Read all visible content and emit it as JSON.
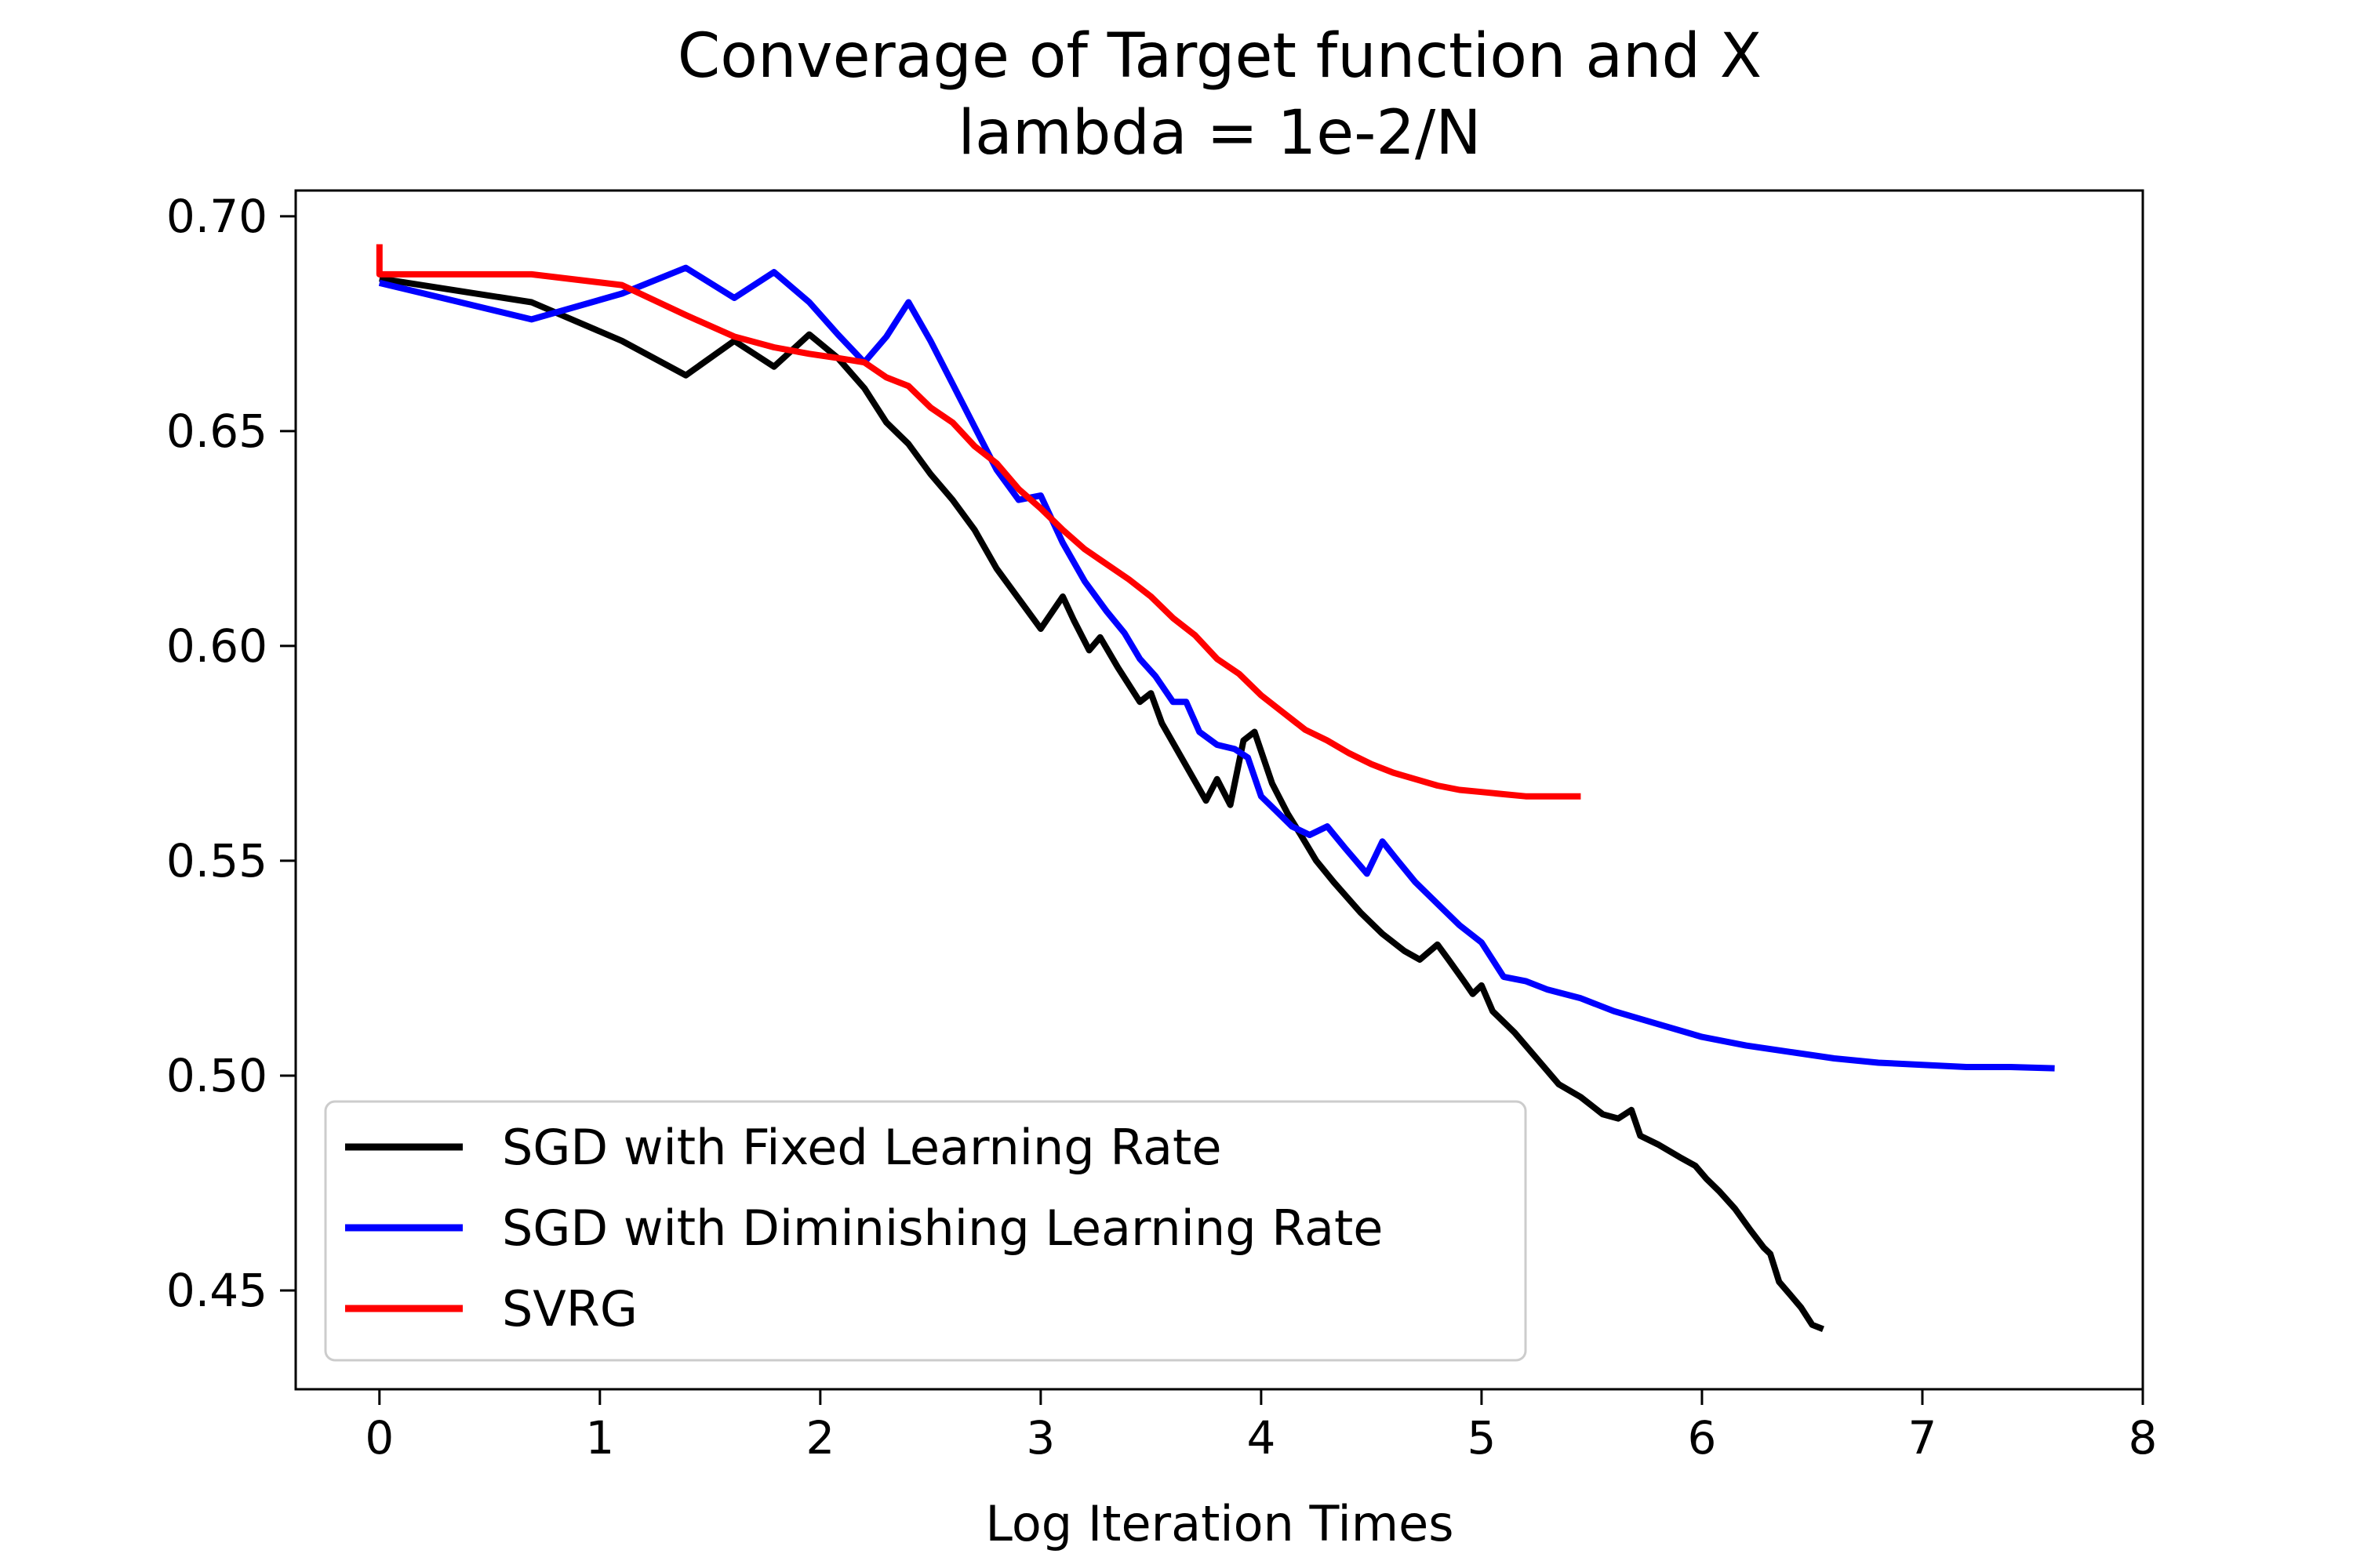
{
  "chart_data": {
    "type": "line",
    "title": "Converage of Target function and X",
    "subtitle": "lambda = 1e-2/N",
    "xlabel": "Log Iteration Times",
    "ylabel": "",
    "xlim": [
      -0.38,
      8.0
    ],
    "ylim": [
      0.427,
      0.706
    ],
    "xticks": [
      0,
      1,
      2,
      3,
      4,
      5,
      6,
      7,
      8
    ],
    "xtick_labels": [
      "0",
      "1",
      "2",
      "3",
      "4",
      "5",
      "6",
      "7",
      "8"
    ],
    "yticks": [
      0.45,
      0.5,
      0.55,
      0.6,
      0.65,
      0.7
    ],
    "ytick_labels": [
      "0.45",
      "0.50",
      "0.55",
      "0.60",
      "0.65",
      "0.70"
    ],
    "grid": false,
    "legend_position": "lower-left",
    "series": [
      {
        "name": "SGD with Fixed Learning Rate",
        "color": "#000000",
        "points": [
          [
            0.0,
            0.6855
          ],
          [
            0.69,
            0.68
          ],
          [
            1.1,
            0.671
          ],
          [
            1.39,
            0.663
          ],
          [
            1.61,
            0.671
          ],
          [
            1.79,
            0.665
          ],
          [
            1.95,
            0.6725
          ],
          [
            2.08,
            0.667
          ],
          [
            2.2,
            0.66
          ],
          [
            2.3,
            0.652
          ],
          [
            2.4,
            0.647
          ],
          [
            2.5,
            0.64
          ],
          [
            2.6,
            0.634
          ],
          [
            2.7,
            0.627
          ],
          [
            2.8,
            0.618
          ],
          [
            2.9,
            0.611
          ],
          [
            3.0,
            0.604
          ],
          [
            3.1,
            0.6115
          ],
          [
            3.15,
            0.606
          ],
          [
            3.22,
            0.599
          ],
          [
            3.27,
            0.602
          ],
          [
            3.35,
            0.595
          ],
          [
            3.45,
            0.587
          ],
          [
            3.5,
            0.589
          ],
          [
            3.55,
            0.582
          ],
          [
            3.65,
            0.573
          ],
          [
            3.75,
            0.564
          ],
          [
            3.8,
            0.569
          ],
          [
            3.86,
            0.563
          ],
          [
            3.92,
            0.578
          ],
          [
            3.97,
            0.58
          ],
          [
            4.05,
            0.568
          ],
          [
            4.12,
            0.561
          ],
          [
            4.18,
            0.556
          ],
          [
            4.25,
            0.55
          ],
          [
            4.33,
            0.545
          ],
          [
            4.45,
            0.538
          ],
          [
            4.55,
            0.533
          ],
          [
            4.65,
            0.529
          ],
          [
            4.72,
            0.527
          ],
          [
            4.8,
            0.5305
          ],
          [
            4.85,
            0.527
          ],
          [
            4.92,
            0.522
          ],
          [
            4.96,
            0.519
          ],
          [
            5.0,
            0.521
          ],
          [
            5.05,
            0.515
          ],
          [
            5.15,
            0.51
          ],
          [
            5.25,
            0.504
          ],
          [
            5.35,
            0.498
          ],
          [
            5.45,
            0.495
          ],
          [
            5.55,
            0.491
          ],
          [
            5.62,
            0.49
          ],
          [
            5.68,
            0.492
          ],
          [
            5.72,
            0.486
          ],
          [
            5.8,
            0.484
          ],
          [
            5.9,
            0.481
          ],
          [
            5.97,
            0.479
          ],
          [
            6.02,
            0.476
          ],
          [
            6.08,
            0.473
          ],
          [
            6.15,
            0.469
          ],
          [
            6.22,
            0.464
          ],
          [
            6.28,
            0.46
          ],
          [
            6.31,
            0.4585
          ],
          [
            6.35,
            0.452
          ],
          [
            6.4,
            0.449
          ],
          [
            6.45,
            0.446
          ],
          [
            6.5,
            0.442
          ],
          [
            6.55,
            0.441
          ]
        ]
      },
      {
        "name": "SGD with Diminishing Learning Rate",
        "color": "#0000ff",
        "points": [
          [
            0.0,
            0.6845
          ],
          [
            0.69,
            0.676
          ],
          [
            1.1,
            0.682
          ],
          [
            1.39,
            0.688
          ],
          [
            1.61,
            0.681
          ],
          [
            1.79,
            0.687
          ],
          [
            1.95,
            0.68
          ],
          [
            2.08,
            0.6725
          ],
          [
            2.2,
            0.666
          ],
          [
            2.3,
            0.672
          ],
          [
            2.4,
            0.68
          ],
          [
            2.5,
            0.671
          ],
          [
            2.6,
            0.661
          ],
          [
            2.7,
            0.651
          ],
          [
            2.8,
            0.641
          ],
          [
            2.9,
            0.634
          ],
          [
            3.0,
            0.635
          ],
          [
            3.1,
            0.624
          ],
          [
            3.2,
            0.615
          ],
          [
            3.3,
            0.608
          ],
          [
            3.38,
            0.603
          ],
          [
            3.45,
            0.597
          ],
          [
            3.52,
            0.593
          ],
          [
            3.6,
            0.587
          ],
          [
            3.66,
            0.587
          ],
          [
            3.72,
            0.58
          ],
          [
            3.8,
            0.577
          ],
          [
            3.88,
            0.576
          ],
          [
            3.94,
            0.574
          ],
          [
            4.0,
            0.565
          ],
          [
            4.06,
            0.562
          ],
          [
            4.14,
            0.558
          ],
          [
            4.22,
            0.556
          ],
          [
            4.3,
            0.558
          ],
          [
            4.38,
            0.553
          ],
          [
            4.48,
            0.547
          ],
          [
            4.55,
            0.5545
          ],
          [
            4.62,
            0.55
          ],
          [
            4.7,
            0.545
          ],
          [
            4.8,
            0.54
          ],
          [
            4.9,
            0.535
          ],
          [
            5.0,
            0.531
          ],
          [
            5.1,
            0.523
          ],
          [
            5.2,
            0.522
          ],
          [
            5.3,
            0.52
          ],
          [
            5.45,
            0.518
          ],
          [
            5.6,
            0.515
          ],
          [
            5.8,
            0.512
          ],
          [
            6.0,
            0.509
          ],
          [
            6.2,
            0.507
          ],
          [
            6.4,
            0.5055
          ],
          [
            6.6,
            0.504
          ],
          [
            6.8,
            0.503
          ],
          [
            7.0,
            0.5025
          ],
          [
            7.2,
            0.502
          ],
          [
            7.4,
            0.502
          ],
          [
            7.6,
            0.5017
          ]
        ]
      },
      {
        "name": "SVRG",
        "color": "#ff0000",
        "points": [
          [
            0.0,
            0.6935
          ],
          [
            0.0,
            0.6865
          ],
          [
            0.69,
            0.6865
          ],
          [
            1.1,
            0.684
          ],
          [
            1.39,
            0.677
          ],
          [
            1.61,
            0.672
          ],
          [
            1.79,
            0.6695
          ],
          [
            1.95,
            0.668
          ],
          [
            2.08,
            0.667
          ],
          [
            2.2,
            0.666
          ],
          [
            2.3,
            0.6625
          ],
          [
            2.4,
            0.6605
          ],
          [
            2.5,
            0.6555
          ],
          [
            2.6,
            0.652
          ],
          [
            2.7,
            0.6465
          ],
          [
            2.8,
            0.6425
          ],
          [
            2.9,
            0.6365
          ],
          [
            3.0,
            0.632
          ],
          [
            3.1,
            0.627
          ],
          [
            3.2,
            0.6225
          ],
          [
            3.3,
            0.619
          ],
          [
            3.4,
            0.6155
          ],
          [
            3.5,
            0.6115
          ],
          [
            3.6,
            0.6065
          ],
          [
            3.7,
            0.6025
          ],
          [
            3.8,
            0.597
          ],
          [
            3.9,
            0.5935
          ],
          [
            4.0,
            0.5885
          ],
          [
            4.1,
            0.5845
          ],
          [
            4.2,
            0.5805
          ],
          [
            4.3,
            0.578
          ],
          [
            4.4,
            0.575
          ],
          [
            4.5,
            0.5725
          ],
          [
            4.6,
            0.5705
          ],
          [
            4.7,
            0.569
          ],
          [
            4.8,
            0.5675
          ],
          [
            4.9,
            0.5665
          ],
          [
            5.0,
            0.566
          ],
          [
            5.1,
            0.5655
          ],
          [
            5.2,
            0.565
          ],
          [
            5.3,
            0.565
          ],
          [
            5.45,
            0.565
          ]
        ]
      }
    ]
  }
}
